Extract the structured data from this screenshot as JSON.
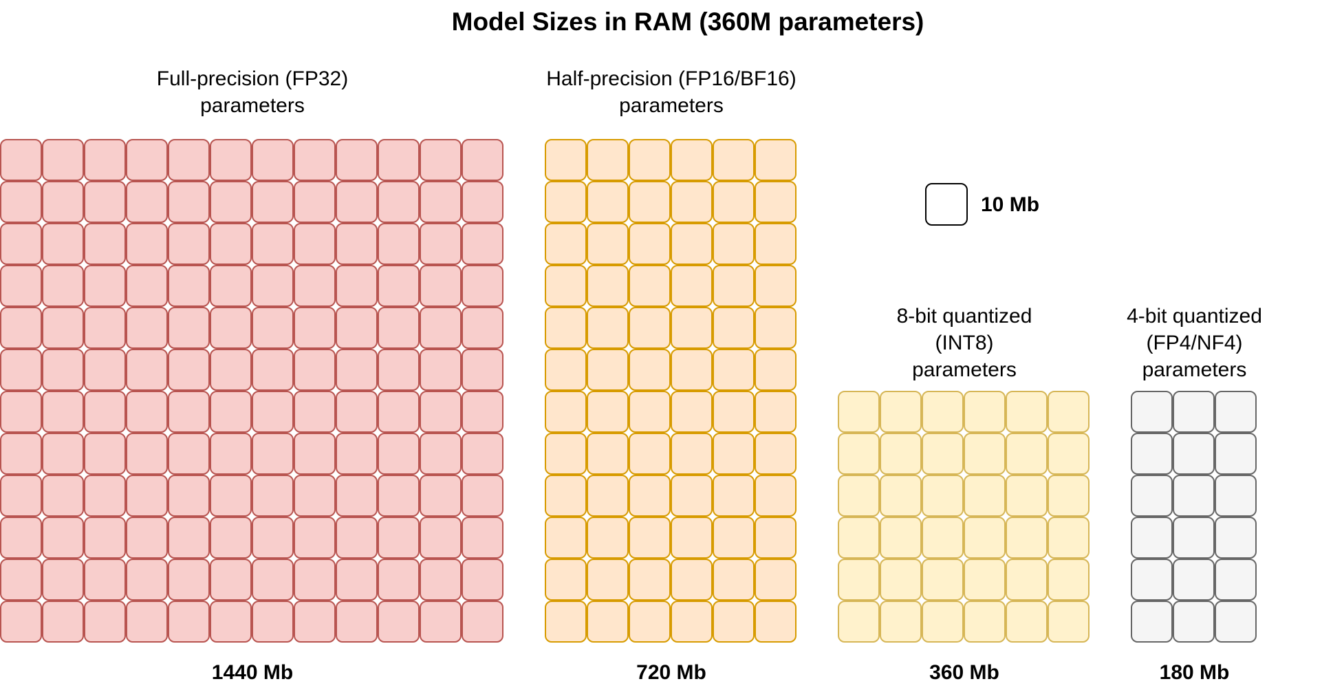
{
  "title": "Model Sizes in RAM (360M parameters)",
  "legend": {
    "label": "10 Mb",
    "block_fill": "#ffffff",
    "block_stroke": "#000000"
  },
  "groups": [
    {
      "id": "fp32",
      "label_lines": [
        "Full-precision (FP32)",
        "parameters"
      ],
      "size_label": "1440 Mb",
      "block_count": 144,
      "columns": 12,
      "rows": 12,
      "fill": "#f8cecc",
      "stroke": "#b85450"
    },
    {
      "id": "fp16",
      "label_lines": [
        "Half-precision (FP16/BF16)",
        "parameters"
      ],
      "size_label": "720 Mb",
      "block_count": 72,
      "columns": 6,
      "rows": 12,
      "fill": "#ffe6cc",
      "stroke": "#d79b00"
    },
    {
      "id": "int8",
      "label_lines": [
        "8-bit quantized",
        "(INT8)",
        "parameters"
      ],
      "size_label": "360 Mb",
      "block_count": 36,
      "columns": 6,
      "rows": 6,
      "fill": "#fff2cc",
      "stroke": "#d6b656"
    },
    {
      "id": "fp4",
      "label_lines": [
        "4-bit quantized",
        "(FP4/NF4)",
        "parameters"
      ],
      "size_label": "180 Mb",
      "block_count": 18,
      "columns": 3,
      "rows": 6,
      "fill": "#f5f5f5",
      "stroke": "#666666"
    }
  ]
}
